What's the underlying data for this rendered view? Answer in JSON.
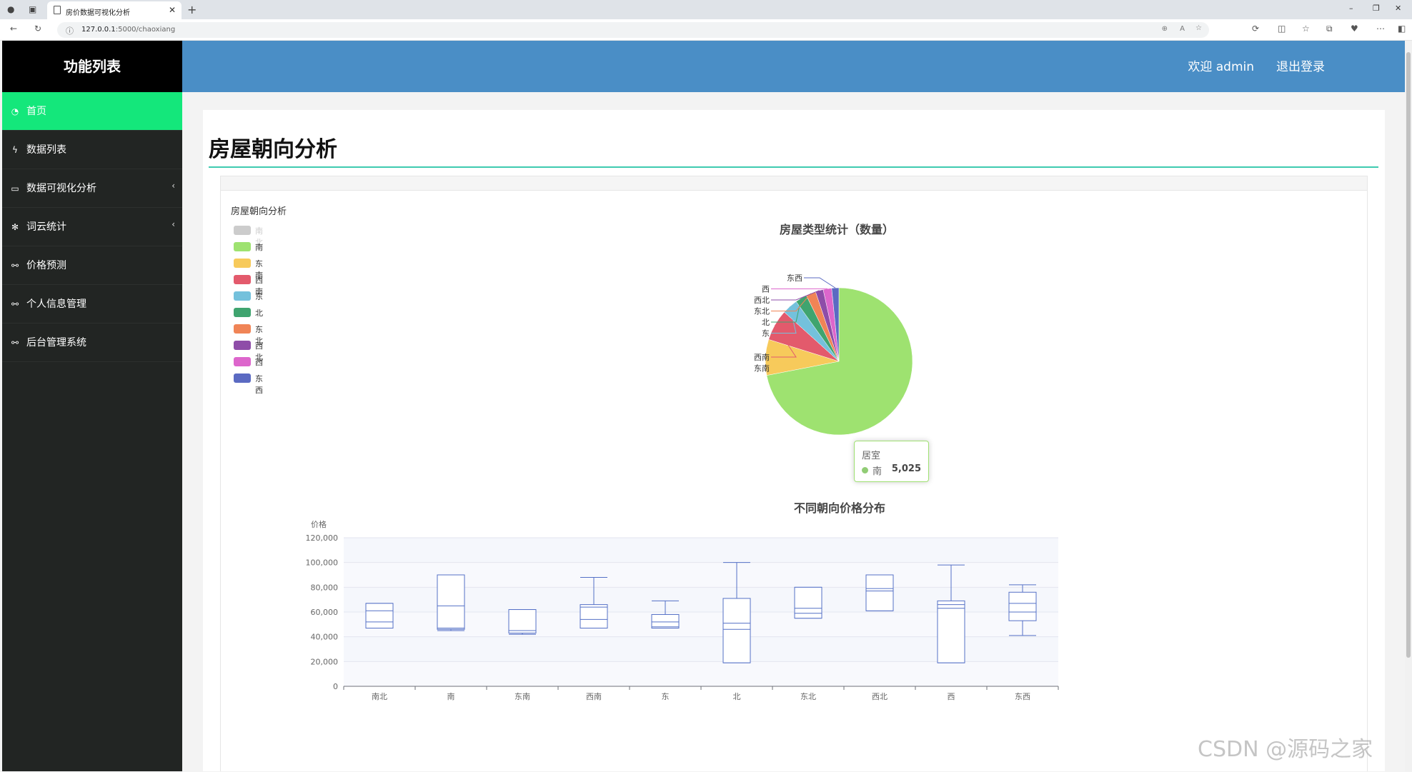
{
  "browser": {
    "tab_title": "房价数据可视化分析",
    "url_host": "127.0.0.1",
    "url_path": ":5000/chaoxiang"
  },
  "sidebar": {
    "title": "功能列表",
    "items": [
      {
        "label": "首页",
        "icon": "dashboard-icon",
        "active": true
      },
      {
        "label": "数据列表",
        "icon": "bolt-icon"
      },
      {
        "label": "数据可视化分析",
        "icon": "monitor-icon",
        "expandable": true
      },
      {
        "label": "词云统计",
        "icon": "yelp-icon",
        "expandable": true
      },
      {
        "label": "价格预测",
        "icon": "motorcycle-icon"
      },
      {
        "label": "个人信息管理",
        "icon": "motorcycle-icon"
      },
      {
        "label": "后台管理系统",
        "icon": "motorcycle-icon"
      }
    ]
  },
  "header": {
    "welcome": "欢迎 admin",
    "logout": "退出登录"
  },
  "page": {
    "title": "房屋朝向分析",
    "panel_label": "房屋朝向分析"
  },
  "tooltip": {
    "title": "居室",
    "name": "南",
    "value": "5,025"
  },
  "watermark": "CSDN @源码之家",
  "chart_data": [
    {
      "type": "pie",
      "title": "房屋类型统计（数量）",
      "legend_position": "left",
      "legend_disabled": [
        "南北"
      ],
      "categories": [
        "南北",
        "南",
        "东南",
        "西南",
        "东",
        "北",
        "东北",
        "西北",
        "西",
        "东西"
      ],
      "colors": [
        "#cccccc",
        "#9ee270",
        "#f7ca5b",
        "#e35a6c",
        "#74c1dc",
        "#3fa46f",
        "#f08456",
        "#8e4da8",
        "#dd66cc",
        "#5b6ac2"
      ],
      "values": [
        0,
        5025,
        550,
        480,
        240,
        180,
        150,
        120,
        130,
        110
      ]
    },
    {
      "type": "boxplot",
      "title": "不同朝向价格分布",
      "ylabel": "价格",
      "ylim": [
        0,
        120000
      ],
      "yticks": [
        "0",
        "20,000",
        "40,000",
        "60,000",
        "80,000",
        "100,000",
        "120,000"
      ],
      "categories": [
        "南北",
        "南",
        "东南",
        "西南",
        "东",
        "北",
        "东北",
        "西北",
        "西",
        "东西"
      ],
      "series": [
        [
          47000,
          47000,
          52000,
          61000,
          67000,
          67000
        ],
        [
          45000,
          46000,
          47000,
          65000,
          90000,
          90000
        ],
        [
          42000,
          43000,
          45000,
          62000,
          62000,
          62000
        ],
        [
          47000,
          47000,
          54000,
          64000,
          66000,
          88000
        ],
        [
          47000,
          47000,
          48000,
          52000,
          58000,
          69000
        ],
        [
          19000,
          19000,
          46000,
          51000,
          71000,
          100000
        ],
        [
          55000,
          55000,
          59000,
          63000,
          80000,
          80000
        ],
        [
          61000,
          61000,
          77000,
          79000,
          90000,
          90000
        ],
        [
          19000,
          19000,
          63000,
          66000,
          69000,
          98000
        ],
        [
          41000,
          53000,
          60000,
          67000,
          76000,
          82000
        ]
      ],
      "series_format": "[whisker_low, q1, median, q3_lower_line, q3, whisker_high]"
    }
  ]
}
